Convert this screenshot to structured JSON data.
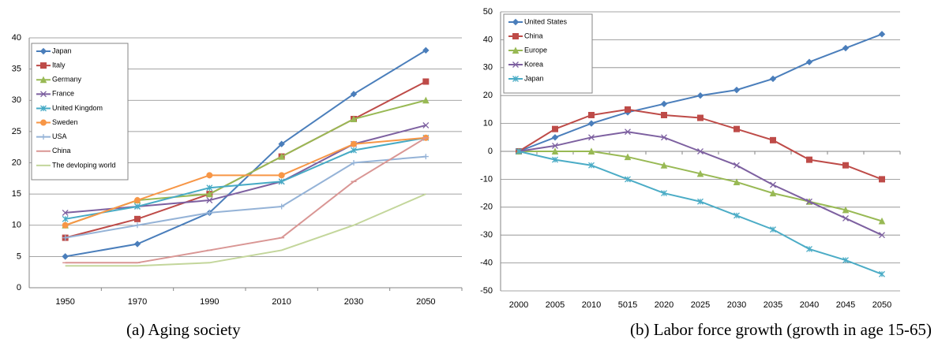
{
  "chart_data": [
    {
      "type": "line",
      "caption": "(a)   Aging society",
      "categories": [
        "1950",
        "1970",
        "1990",
        "2010",
        "2030",
        "2050"
      ],
      "ylim": [
        0,
        40
      ],
      "yticks": [
        0,
        5,
        10,
        15,
        20,
        25,
        30,
        35,
        40
      ],
      "grid": true,
      "series": [
        {
          "name": "Japan",
          "color": "#4a7ebb",
          "marker": "diamond",
          "values": [
            5,
            7,
            12,
            23,
            31,
            38
          ]
        },
        {
          "name": "Italy",
          "color": "#be4b48",
          "marker": "square",
          "values": [
            8,
            11,
            15,
            21,
            27,
            33
          ]
        },
        {
          "name": "Germany",
          "color": "#98b954",
          "marker": "triangle",
          "values": [
            10,
            14,
            15,
            21,
            27,
            30
          ]
        },
        {
          "name": "France",
          "color": "#7d60a0",
          "marker": "x",
          "values": [
            12,
            13,
            14,
            17,
            23,
            26
          ]
        },
        {
          "name": "United Kingdom",
          "color": "#46aac5",
          "marker": "star",
          "values": [
            11,
            13,
            16,
            17,
            22,
            24
          ]
        },
        {
          "name": "Sweden",
          "color": "#f79646",
          "marker": "circle",
          "values": [
            10,
            14,
            18,
            18,
            23,
            24
          ]
        },
        {
          "name": "USA",
          "color": "#95b3d7",
          "marker": "plus",
          "values": [
            8,
            10,
            12,
            13,
            20,
            21
          ]
        },
        {
          "name": "China",
          "color": "#d99694",
          "marker": "dash",
          "values": [
            4,
            4,
            6,
            8,
            17,
            24
          ]
        },
        {
          "name": "The devloping world",
          "color": "#c3d69b",
          "marker": "none",
          "values": [
            3.5,
            3.5,
            4,
            6,
            10,
            15
          ]
        }
      ]
    },
    {
      "type": "line",
      "caption": "(b) Labor force growth (growth in age 15-65)",
      "categories": [
        "2000",
        "2005",
        "2010",
        "5015",
        "2020",
        "2025",
        "2030",
        "2035",
        "2040",
        "2045",
        "2050"
      ],
      "ylim": [
        -50,
        50
      ],
      "yticks": [
        -50,
        -40,
        -30,
        -20,
        -10,
        0,
        10,
        20,
        30,
        40,
        50
      ],
      "grid": true,
      "series": [
        {
          "name": "United States",
          "color": "#4a7ebb",
          "marker": "diamond",
          "values": [
            0,
            5,
            10,
            14,
            17,
            20,
            22,
            26,
            32,
            37,
            42
          ]
        },
        {
          "name": "China",
          "color": "#be4b48",
          "marker": "square",
          "values": [
            0,
            8,
            13,
            15,
            13,
            12,
            8,
            4,
            -3,
            -5,
            -10
          ]
        },
        {
          "name": "Europe",
          "color": "#98b954",
          "marker": "triangle",
          "values": [
            0,
            0,
            0,
            -2,
            -5,
            -8,
            -11,
            -15,
            -18,
            -21,
            -25
          ]
        },
        {
          "name": "Korea",
          "color": "#7d60a0",
          "marker": "x",
          "values": [
            0,
            2,
            5,
            7,
            5,
            0,
            -5,
            -12,
            -18,
            -24,
            -30
          ]
        },
        {
          "name": "Japan",
          "color": "#4bacc6",
          "marker": "star",
          "values": [
            0,
            -3,
            -5,
            -10,
            -15,
            -18,
            -23,
            -28,
            -35,
            -39,
            -44
          ]
        }
      ]
    }
  ]
}
